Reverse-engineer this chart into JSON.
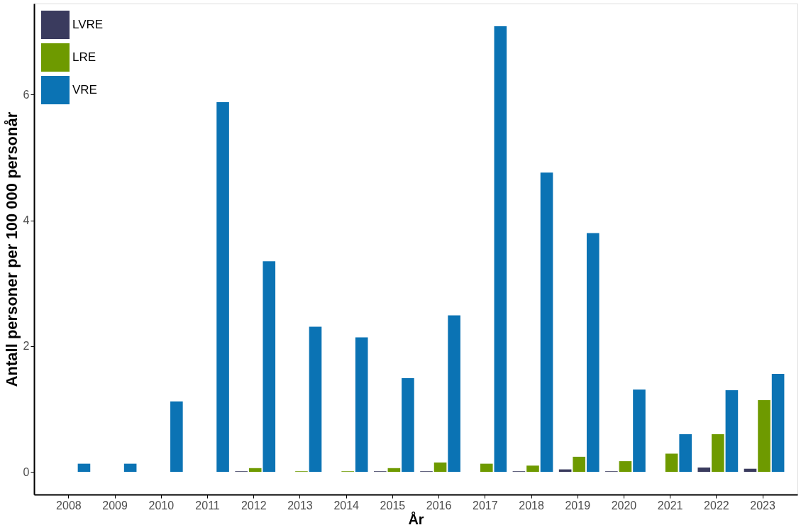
{
  "chart_data": {
    "type": "bar",
    "xlabel": "År",
    "ylabel": "Antall personer per 100 000 personår",
    "categories": [
      "2008",
      "2009",
      "2010",
      "2011",
      "2012",
      "2013",
      "2014",
      "2015",
      "2016",
      "2017",
      "2018",
      "2019",
      "2020",
      "2021",
      "2022",
      "2023"
    ],
    "series": [
      {
        "name": "LVRE",
        "color": "#3a3b5e",
        "values": [
          null,
          null,
          null,
          null,
          0.01,
          null,
          null,
          0.01,
          0.01,
          null,
          0.01,
          0.04,
          0.01,
          null,
          0.07,
          0.05
        ]
      },
      {
        "name": "LRE",
        "color": "#6e9a00",
        "values": [
          null,
          null,
          null,
          null,
          0.06,
          0.01,
          0.01,
          0.06,
          0.15,
          0.13,
          0.1,
          0.24,
          0.17,
          0.29,
          0.6,
          1.14
        ]
      },
      {
        "name": "VRE",
        "color": "#0b73b4",
        "values": [
          0.13,
          0.13,
          1.12,
          5.88,
          3.35,
          2.31,
          2.14,
          1.49,
          2.49,
          7.09,
          4.76,
          3.8,
          1.31,
          0.6,
          1.3,
          1.56
        ]
      }
    ],
    "ylim": [
      -0.36,
      7.45
    ],
    "yticks": [
      0,
      2,
      4,
      6
    ],
    "grid": false,
    "legend": "top left"
  }
}
